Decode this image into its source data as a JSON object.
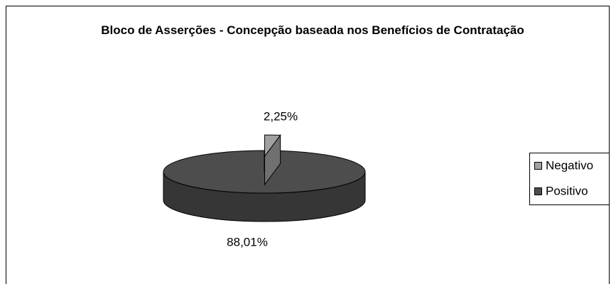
{
  "chart_data": {
    "type": "pie",
    "title": "Bloco de Asserções - Concepção baseada nos Benefícios de Contratação",
    "categories": [
      "Negativo",
      "Positivo"
    ],
    "values": [
      2.25,
      88.01
    ],
    "value_labels": [
      "2,25%",
      "88,01%"
    ],
    "colors": [
      "#a0a0a0",
      "#4d4d4d"
    ],
    "legend": "right"
  }
}
